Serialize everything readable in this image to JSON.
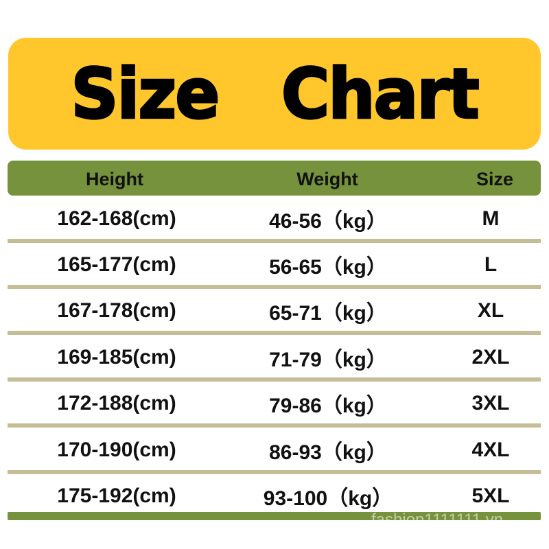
{
  "title": "Size  Chart",
  "colors": {
    "banner": "#FFC72C",
    "header": "#76923C",
    "separator": "#C4BD97"
  },
  "headers": {
    "height": "Height",
    "weight": "Weight",
    "size": "Size"
  },
  "rows": [
    {
      "height": "162-168(cm)",
      "weight": "46-56（kg）",
      "size": "M"
    },
    {
      "height": "165-177(cm)",
      "weight": "56-65（kg）",
      "size": "L"
    },
    {
      "height": "167-178(cm)",
      "weight": "65-71（kg）",
      "size": "XL"
    },
    {
      "height": "169-185(cm)",
      "weight": "71-79（kg）",
      "size": "2XL"
    },
    {
      "height": "172-188(cm)",
      "weight": "79-86（kg）",
      "size": "3XL"
    },
    {
      "height": "170-190(cm)",
      "weight": "86-93（kg）",
      "size": "4XL"
    },
    {
      "height": "175-192(cm)",
      "weight": "93-100（kg）",
      "size": "5XL"
    }
  ],
  "watermark": "fashion1111111.vn"
}
